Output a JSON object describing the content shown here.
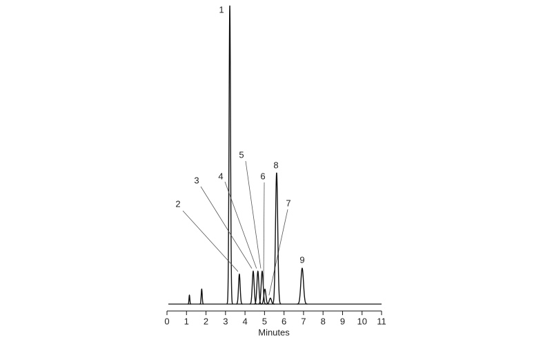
{
  "chart_data": {
    "type": "chromatogram",
    "x_label": "Minutes",
    "xlim": [
      0,
      11
    ],
    "xticks": [
      0,
      1,
      2,
      3,
      4,
      5,
      6,
      7,
      8,
      9,
      10,
      11
    ],
    "ylim": [
      0,
      100
    ],
    "color": "#111111",
    "peaks": {
      "labels": [
        null,
        null,
        "1",
        "2",
        "3",
        "4",
        "5",
        "6",
        "7",
        "8",
        "9"
      ],
      "x": [
        1.15,
        1.78,
        3.22,
        3.71,
        4.42,
        4.66,
        4.88,
        5.02,
        5.3,
        5.62,
        6.93
      ],
      "values": [
        3,
        5,
        100,
        10,
        11,
        11,
        11,
        5,
        2,
        44,
        12
      ]
    }
  }
}
